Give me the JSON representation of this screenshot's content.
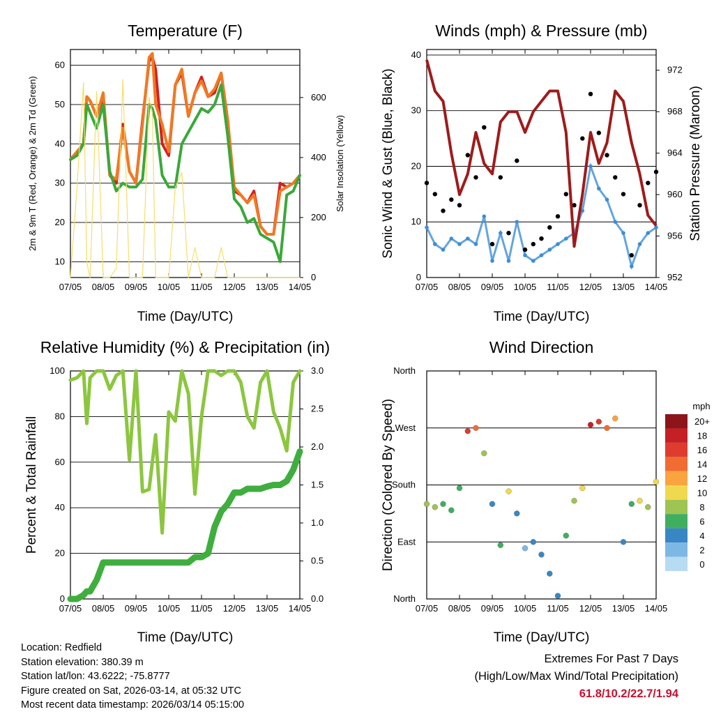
{
  "chart_data": [
    {
      "type": "line",
      "title": "Temperature (F)",
      "xlabel": "Time (Day/UTC)",
      "ylabel": "2m & 9m T (Red, Orange) & 2m Td (Green)",
      "y2label": "Solar Insolation (Yellow)",
      "categories": [
        "07/05",
        "08/05",
        "09/05",
        "10/05",
        "11/05",
        "12/05",
        "13/05",
        "14/05"
      ],
      "ylim": [
        6,
        64
      ],
      "yticks": [
        10,
        20,
        30,
        40,
        50,
        60
      ],
      "y2lim": [
        0,
        760
      ],
      "y2ticks": [
        0,
        200,
        400,
        600
      ],
      "x": [
        0,
        0.2,
        0.4,
        0.5,
        0.6,
        0.8,
        1.0,
        1.2,
        1.4,
        1.6,
        1.8,
        2.0,
        2.2,
        2.4,
        2.5,
        2.6,
        2.8,
        3.0,
        3.2,
        3.4,
        3.6,
        3.8,
        4.0,
        4.2,
        4.4,
        4.6,
        4.8,
        5.0,
        5.2,
        5.4,
        5.6,
        5.8,
        6.0,
        6.2,
        6.4,
        6.6,
        6.8,
        7.0
      ],
      "series": [
        {
          "name": "2m T",
          "color": "#d62020",
          "values": [
            36,
            38,
            40,
            52,
            51,
            47,
            52,
            32,
            30,
            45,
            33,
            30,
            46,
            61,
            62,
            59,
            40,
            37,
            55,
            58,
            47,
            53,
            57,
            52,
            53,
            58,
            46,
            28,
            27,
            25,
            28,
            19,
            17,
            17,
            30,
            29,
            30,
            32
          ]
        },
        {
          "name": "9m T",
          "color": "#f07a20",
          "values": [
            36,
            38,
            40,
            52,
            51,
            47,
            53,
            32,
            31,
            44,
            33,
            30,
            45,
            62,
            63,
            50,
            45,
            38,
            55,
            59,
            47,
            53,
            56,
            52,
            54,
            58,
            46,
            29,
            27,
            25,
            27,
            19,
            17,
            17,
            28,
            29,
            30,
            32
          ]
        },
        {
          "name": "2m Td",
          "color": "#3aa83a",
          "values": [
            36,
            37,
            40,
            50,
            48,
            44,
            50,
            33,
            28,
            30,
            29,
            29,
            31,
            50,
            49,
            46,
            32,
            29,
            29,
            40,
            43,
            46,
            49,
            48,
            50,
            55,
            42,
            26,
            24,
            20,
            21,
            17,
            16,
            15,
            10,
            27,
            28,
            32
          ]
        },
        {
          "name": "Solar Insolation",
          "axis": "right",
          "color": "#f5de6a",
          "values": [
            0,
            300,
            650,
            50,
            0,
            620,
            0,
            0,
            30,
            660,
            0,
            0,
            0,
            600,
            550,
            0,
            0,
            0,
            300,
            350,
            0,
            100,
            0,
            0,
            0,
            100,
            0,
            0,
            0,
            0,
            0,
            0,
            0,
            0,
            0,
            0,
            0,
            0
          ]
        }
      ]
    },
    {
      "type": "scatter",
      "title": "Winds (mph) & Pressure (mb)",
      "xlabel": "Time (Day/UTC)",
      "ylabel": "Sonic Wind & Gust (Blue, Black)",
      "y2label": "Station Pressure (Maroon)",
      "categories": [
        "07/05",
        "08/05",
        "09/05",
        "10/05",
        "11/05",
        "12/05",
        "13/05",
        "14/05"
      ],
      "ylim": [
        0,
        41
      ],
      "yticks": [
        0,
        10,
        20,
        30,
        40
      ],
      "y2lim": [
        952,
        974
      ],
      "y2ticks": [
        952,
        956,
        960,
        964,
        968,
        972
      ],
      "x": [
        0,
        0.25,
        0.5,
        0.75,
        1.0,
        1.25,
        1.5,
        1.75,
        2.0,
        2.25,
        2.5,
        2.75,
        3.0,
        3.25,
        3.5,
        3.75,
        4.0,
        4.25,
        4.5,
        4.75,
        5.0,
        5.25,
        5.5,
        5.75,
        6.0,
        6.25,
        6.5,
        6.75,
        7.0
      ],
      "series": [
        {
          "name": "Sonic Wind",
          "color": "#3d8ed4",
          "values": [
            9,
            6,
            5,
            7,
            6,
            7,
            6,
            11,
            3,
            8,
            3,
            10,
            4,
            3,
            4,
            5,
            6,
            7,
            8,
            12,
            20,
            16,
            14,
            10,
            8,
            2,
            6,
            8,
            9
          ]
        },
        {
          "name": "Gust",
          "color": "#000000",
          "values": [
            17,
            15,
            12,
            14,
            13,
            22,
            18,
            27,
            6,
            18,
            8,
            21,
            5,
            6,
            7,
            9,
            11,
            15,
            13,
            25,
            33,
            26,
            22,
            18,
            15,
            4,
            13,
            17,
            19
          ]
        },
        {
          "name": "Station Pressure",
          "axis": "right",
          "color": "#9e1b1b",
          "values": [
            973,
            970,
            969,
            964,
            960,
            962,
            966,
            963,
            962,
            967,
            968,
            968,
            966,
            968,
            969,
            970,
            970,
            966,
            955,
            960,
            966,
            963,
            965,
            970,
            969,
            965,
            962,
            958,
            957
          ]
        }
      ]
    },
    {
      "type": "line",
      "title": "Relative Humidity (%) & Precipitation (in)",
      "xlabel": "Time (Day/UTC)",
      "ylabel": "Percent & Total Rainfall",
      "categories": [
        "07/05",
        "08/05",
        "09/05",
        "10/05",
        "11/05",
        "12/05",
        "13/05",
        "14/05"
      ],
      "ylim": [
        0,
        100
      ],
      "yticks": [
        0,
        20,
        40,
        60,
        80,
        100
      ],
      "y2lim": [
        0.0,
        3.0
      ],
      "y2ticks": [
        0.0,
        0.5,
        1.0,
        1.5,
        2.0,
        2.5,
        3.0
      ],
      "x": [
        0,
        0.2,
        0.4,
        0.5,
        0.6,
        0.8,
        1.0,
        1.2,
        1.4,
        1.6,
        1.8,
        2.0,
        2.2,
        2.4,
        2.6,
        2.8,
        3.0,
        3.2,
        3.4,
        3.6,
        3.8,
        4.0,
        4.2,
        4.4,
        4.6,
        4.8,
        5.0,
        5.2,
        5.4,
        5.6,
        5.8,
        6.0,
        6.2,
        6.4,
        6.6,
        6.8,
        7.0
      ],
      "series": [
        {
          "name": "Relative Humidity",
          "color": "#8cc63f",
          "values": [
            96,
            97,
            100,
            77,
            97,
            100,
            100,
            92,
            98,
            100,
            61,
            100,
            47,
            48,
            72,
            29,
            82,
            78,
            100,
            90,
            46,
            80,
            100,
            100,
            98,
            100,
            100,
            95,
            80,
            75,
            95,
            100,
            82,
            75,
            65,
            95,
            100
          ]
        },
        {
          "name": "Total Precipitation",
          "axis": "right",
          "color": "#3fae3f",
          "values": [
            0.0,
            0.0,
            0.05,
            0.1,
            0.1,
            0.25,
            0.48,
            0.48,
            0.48,
            0.48,
            0.48,
            0.48,
            0.48,
            0.48,
            0.48,
            0.48,
            0.48,
            0.48,
            0.48,
            0.48,
            0.55,
            0.55,
            0.6,
            0.95,
            1.15,
            1.25,
            1.4,
            1.4,
            1.45,
            1.45,
            1.45,
            1.48,
            1.5,
            1.5,
            1.55,
            1.7,
            1.94
          ]
        }
      ]
    },
    {
      "type": "scatter",
      "title": "Wind Direction",
      "xlabel": "Time (Day/UTC)",
      "ylabel": "Direction (Colored By Speed)",
      "categories": [
        "07/05",
        "08/05",
        "09/05",
        "10/05",
        "11/05",
        "12/05",
        "13/05",
        "14/05"
      ],
      "yticklabels": [
        "North",
        "East",
        "South",
        "West",
        "North"
      ],
      "ylim": [
        0,
        360
      ],
      "legend_title": "mph",
      "colorbar_labels": [
        "20+",
        "18",
        "16",
        "14",
        "12",
        "10",
        "8",
        "6",
        "4",
        "2",
        "0"
      ],
      "colorbar_colors": [
        "#8c1519",
        "#c42026",
        "#df3c2d",
        "#f06c30",
        "#f9a43f",
        "#f1d94f",
        "#9ec452",
        "#3fae5f",
        "#3887c4",
        "#7db8e4",
        "#b7dcf2"
      ],
      "x": [
        0,
        0.25,
        0.5,
        0.75,
        1.0,
        1.25,
        1.5,
        1.75,
        2.0,
        2.25,
        2.5,
        2.75,
        3.0,
        3.25,
        3.5,
        3.75,
        4.0,
        4.25,
        4.5,
        4.75,
        5.0,
        5.25,
        5.5,
        5.75,
        6.0,
        6.25,
        6.5,
        6.75,
        7.0
      ],
      "series": [
        {
          "name": "Direction (deg)",
          "values": [
            150,
            145,
            150,
            140,
            175,
            265,
            270,
            230,
            150,
            85,
            170,
            135,
            80,
            90,
            70,
            40,
            5,
            100,
            155,
            175,
            275,
            280,
            270,
            285,
            90,
            150,
            155,
            145,
            185
          ]
        },
        {
          "name": "Speed (mph)",
          "values": [
            8,
            7,
            6,
            5,
            6,
            15,
            13,
            7,
            3,
            5,
            10,
            4,
            2,
            3,
            3,
            4,
            3,
            5,
            7,
            10,
            18,
            16,
            13,
            11,
            3,
            6,
            9,
            8,
            9
          ]
        }
      ]
    }
  ],
  "footer": {
    "location": "Location: Redfield",
    "elevation": "Station elevation: 380.39 m",
    "latlon": "Station lat/lon: 43.6222; -75.8777",
    "created": "Figure created on Sat, 2026-03-14, at 05:32 UTC",
    "recent": "Most recent data timestamp: 2026/03/14 05:15:00",
    "extremes_title": "Extremes For Past 7 Days",
    "extremes_subtitle": "(High/Low/Max Wind/Total Precipitation)",
    "extremes_values": "61.8/10.2/22.7/1.94"
  }
}
